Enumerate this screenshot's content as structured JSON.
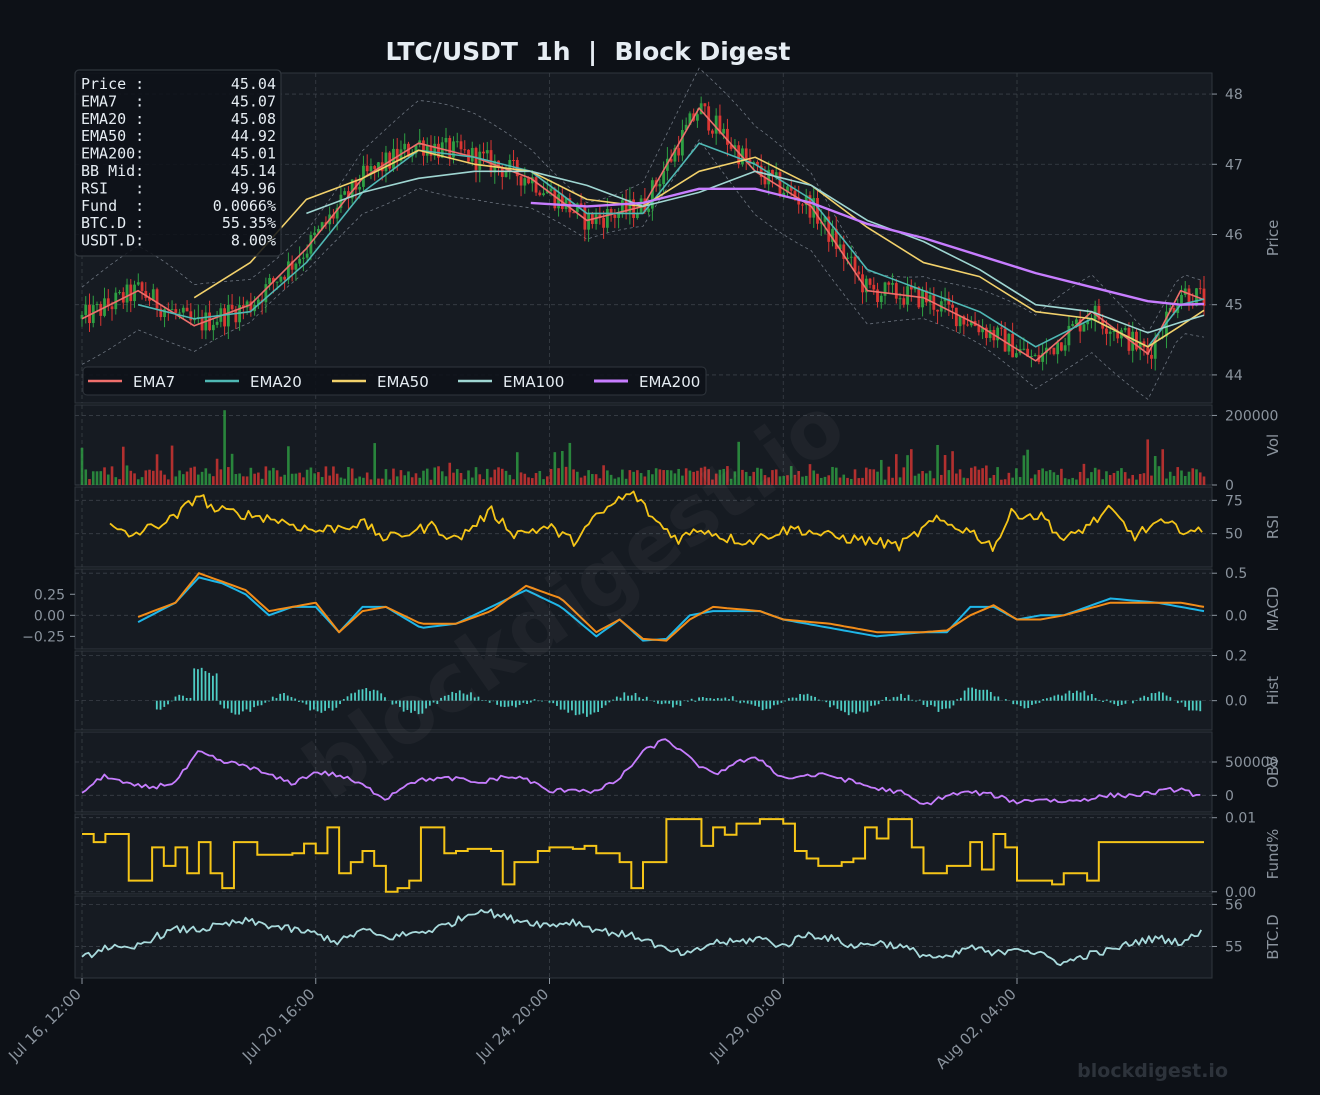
{
  "title": "LTC/USDT  1h  |  Block Digest",
  "watermark_big": "blockdigest.io",
  "watermark_small": "blockdigest.io",
  "colors": {
    "bg": "#0d1117",
    "panel": "#161b22",
    "grid": "#3a4048",
    "text": "#e6edf3",
    "muted": "#8b949e",
    "up": "#2ea043",
    "down": "#da3633",
    "ema7": "#ef6f6c",
    "ema20": "#4fb8b4",
    "ema50": "#f2d16b",
    "ema100": "#9fd6d2",
    "ema200": "#c77dff",
    "rsi": "#f5c518",
    "macd": "#1fb6e8",
    "signal": "#f28c18",
    "hist": "#4ecdc4",
    "obv": "#c77dff",
    "fund": "#f5c518",
    "btcd": "#a8dadc",
    "bb": "#6e7681"
  },
  "info_box": [
    {
      "label": "Price :",
      "value": "45.04"
    },
    {
      "label": "EMA7  :",
      "value": "45.07"
    },
    {
      "label": "EMA20 :",
      "value": "45.08"
    },
    {
      "label": "EMA50 :",
      "value": "44.92"
    },
    {
      "label": "EMA200:",
      "value": "45.01"
    },
    {
      "label": "BB Mid:",
      "value": "45.14"
    },
    {
      "label": "RSI   :",
      "value": "49.96"
    },
    {
      "label": "Fund  :",
      "value": "0.0066%"
    },
    {
      "label": "BTC.D :",
      "value": "55.35%"
    },
    {
      "label": "USDT.D:",
      "value": "8.00%"
    }
  ],
  "chart_data": [
    {
      "panel": "price",
      "type": "candlestick",
      "ylabel": "Price",
      "ylim": [
        43.6,
        48.3
      ],
      "yticks": [
        44,
        45,
        46,
        47,
        48
      ],
      "legend_position": "lower-left",
      "x_range_hours": [
        0,
        480
      ],
      "series": [
        {
          "name": "EMA7",
          "color_key": "ema7",
          "x": [
            0,
            24,
            48,
            72,
            96,
            120,
            144,
            168,
            192,
            216,
            240,
            264,
            288,
            312,
            336,
            360,
            384,
            408,
            432,
            456,
            470,
            480
          ],
          "values": [
            44.8,
            45.2,
            44.7,
            45.0,
            45.8,
            46.8,
            47.3,
            47.1,
            46.8,
            46.2,
            46.4,
            47.8,
            46.9,
            46.4,
            45.2,
            45.1,
            44.7,
            44.2,
            44.9,
            44.3,
            45.2,
            45.07
          ]
        },
        {
          "name": "EMA20",
          "color_key": "ema20",
          "x": [
            24,
            48,
            72,
            96,
            120,
            144,
            168,
            192,
            216,
            240,
            264,
            288,
            312,
            336,
            360,
            384,
            408,
            432,
            456,
            470,
            480
          ],
          "values": [
            45.0,
            44.8,
            44.9,
            45.6,
            46.6,
            47.2,
            47.1,
            46.9,
            46.3,
            46.3,
            47.3,
            47.0,
            46.5,
            45.5,
            45.2,
            44.9,
            44.4,
            44.8,
            44.4,
            45.0,
            45.08
          ]
        },
        {
          "name": "EMA50",
          "color_key": "ema50",
          "x": [
            48,
            72,
            96,
            120,
            144,
            168,
            192,
            216,
            240,
            264,
            288,
            312,
            336,
            360,
            384,
            408,
            432,
            456,
            470,
            480
          ],
          "values": [
            45.1,
            45.6,
            46.5,
            46.8,
            47.2,
            47.0,
            46.9,
            46.5,
            46.4,
            46.9,
            47.1,
            46.7,
            46.1,
            45.6,
            45.4,
            44.9,
            44.8,
            44.4,
            44.7,
            44.92
          ]
        },
        {
          "name": "EMA100",
          "color_key": "ema100",
          "x": [
            96,
            120,
            144,
            168,
            192,
            216,
            240,
            264,
            288,
            312,
            336,
            360,
            384,
            408,
            432,
            456,
            470,
            480
          ],
          "values": [
            46.3,
            46.6,
            46.8,
            46.9,
            46.9,
            46.7,
            46.4,
            46.6,
            46.9,
            46.7,
            46.2,
            45.9,
            45.5,
            45.0,
            44.9,
            44.6,
            44.75,
            44.85
          ]
        },
        {
          "name": "EMA200",
          "color_key": "ema200",
          "x": [
            192,
            216,
            240,
            264,
            288,
            312,
            336,
            360,
            384,
            408,
            432,
            456,
            470,
            480
          ],
          "values": [
            46.45,
            46.4,
            46.45,
            46.65,
            46.65,
            46.45,
            46.15,
            45.95,
            45.7,
            45.45,
            45.25,
            45.05,
            45.0,
            45.01
          ]
        }
      ]
    },
    {
      "panel": "volume",
      "type": "bar",
      "ylabel": "Vol",
      "ylim": [
        0,
        230000
      ],
      "yticks": [
        0,
        200000
      ]
    },
    {
      "panel": "rsi",
      "type": "line",
      "ylabel": "RSI",
      "ylim": [
        25,
        85
      ],
      "yticks": [
        50,
        75
      ],
      "x": [
        12,
        20,
        40,
        50,
        56,
        80,
        100,
        120,
        130,
        150,
        160,
        175,
        185,
        200,
        210,
        220,
        230,
        236,
        245,
        255,
        265,
        275,
        285,
        295,
        305,
        320,
        335,
        350,
        365,
        380,
        390,
        398,
        412,
        420,
        430,
        440,
        450,
        460,
        470,
        480
      ],
      "values": [
        55,
        48,
        62,
        80,
        68,
        62,
        52,
        58,
        46,
        56,
        45,
        67,
        50,
        55,
        44,
        62,
        76,
        80,
        60,
        46,
        54,
        47,
        44,
        50,
        54,
        48,
        45,
        41,
        60,
        52,
        40,
        66,
        62,
        44,
        56,
        68,
        48,
        58,
        54,
        50
      ]
    },
    {
      "panel": "macd",
      "type": "line",
      "ylabel": "MACD",
      "ylim": [
        -0.4,
        0.55
      ],
      "yticks_right": [
        0.0,
        0.5
      ],
      "yticks_left": [
        0.25,
        0.0,
        -0.25
      ],
      "x": [
        24,
        40,
        50,
        60,
        70,
        80,
        90,
        100,
        110,
        120,
        130,
        145,
        160,
        175,
        190,
        205,
        220,
        230,
        240,
        250,
        260,
        270,
        290,
        300,
        320,
        340,
        360,
        370,
        380,
        390,
        400,
        410,
        420,
        440,
        460,
        470,
        480
      ],
      "series": [
        {
          "name": "MACD",
          "color_key": "macd",
          "values": [
            -0.08,
            0.15,
            0.45,
            0.38,
            0.25,
            0.0,
            0.1,
            0.1,
            -0.2,
            0.1,
            0.1,
            -0.15,
            -0.1,
            0.1,
            0.3,
            0.1,
            -0.25,
            -0.05,
            -0.3,
            -0.28,
            0.0,
            0.05,
            0.05,
            -0.05,
            -0.15,
            -0.25,
            -0.2,
            -0.2,
            0.1,
            0.1,
            -0.05,
            0.0,
            0.0,
            0.2,
            0.15,
            0.1,
            0.05
          ]
        },
        {
          "name": "Signal",
          "color_key": "signal",
          "values": [
            -0.02,
            0.15,
            0.5,
            0.4,
            0.3,
            0.05,
            0.1,
            0.15,
            -0.2,
            0.05,
            0.1,
            -0.1,
            -0.1,
            0.05,
            0.35,
            0.2,
            -0.2,
            -0.05,
            -0.28,
            -0.3,
            -0.05,
            0.1,
            0.05,
            -0.05,
            -0.1,
            -0.2,
            -0.2,
            -0.18,
            0.0,
            0.12,
            -0.05,
            -0.05,
            0.0,
            0.15,
            0.15,
            0.15,
            0.1
          ]
        }
      ]
    },
    {
      "panel": "hist",
      "type": "bar",
      "ylabel": "Hist",
      "ylim": [
        -0.13,
        0.22
      ],
      "yticks": [
        0.0,
        0.2
      ]
    },
    {
      "panel": "obv",
      "type": "line",
      "ylabel": "OBV",
      "ylim": [
        -250000,
        950000
      ],
      "yticks": [
        0,
        500000
      ],
      "x": [
        0,
        10,
        20,
        30,
        40,
        50,
        60,
        70,
        80,
        90,
        100,
        110,
        120,
        130,
        140,
        150,
        160,
        170,
        180,
        190,
        200,
        210,
        220,
        230,
        240,
        250,
        260,
        270,
        280,
        290,
        300,
        310,
        320,
        330,
        340,
        350,
        360,
        370,
        380,
        390,
        400,
        410,
        420,
        430,
        440,
        450,
        460,
        470,
        480
      ],
      "values": [
        50000,
        300000,
        150000,
        120000,
        200000,
        650000,
        500000,
        450000,
        300000,
        180000,
        350000,
        300000,
        150000,
        -50000,
        200000,
        250000,
        250000,
        180000,
        280000,
        250000,
        50000,
        100000,
        50000,
        250000,
        650000,
        850000,
        550000,
        300000,
        500000,
        550000,
        250000,
        300000,
        300000,
        200000,
        100000,
        50000,
        -150000,
        0,
        50000,
        0,
        -100000,
        -50000,
        -100000,
        -50000,
        0,
        0,
        50000,
        100000,
        -50000
      ]
    },
    {
      "panel": "fund",
      "type": "step",
      "ylabel": "Fund%",
      "ylim": [
        -0.0003,
        0.0105
      ],
      "yticks": [
        0.0,
        0.01
      ],
      "x": [
        0,
        5,
        10,
        15,
        20,
        25,
        30,
        35,
        40,
        45,
        50,
        55,
        60,
        65,
        70,
        75,
        80,
        85,
        90,
        95,
        100,
        105,
        110,
        115,
        120,
        125,
        130,
        135,
        140,
        145,
        150,
        155,
        160,
        165,
        170,
        175,
        180,
        185,
        190,
        195,
        200,
        205,
        210,
        215,
        220,
        225,
        230,
        235,
        240,
        245,
        250,
        255,
        260,
        265,
        270,
        275,
        280,
        285,
        290,
        295,
        300,
        305,
        310,
        315,
        320,
        325,
        330,
        335,
        340,
        345,
        350,
        355,
        360,
        365,
        370,
        375,
        380,
        385,
        390,
        395,
        400,
        405,
        410,
        415,
        420,
        425,
        430,
        435,
        440,
        445,
        450,
        455,
        460,
        465,
        470,
        475,
        480
      ],
      "values": [
        0.0078,
        0.0067,
        0.0078,
        0.0078,
        0.0015,
        0.0015,
        0.006,
        0.0035,
        0.006,
        0.0025,
        0.0067,
        0.0025,
        0.0005,
        0.0067,
        0.0067,
        0.005,
        0.005,
        0.005,
        0.0052,
        0.0065,
        0.0052,
        0.0087,
        0.0025,
        0.004,
        0.0055,
        0.0035,
        0.0,
        0.0005,
        0.0015,
        0.0087,
        0.0087,
        0.0052,
        0.0055,
        0.0058,
        0.0058,
        0.0055,
        0.001,
        0.004,
        0.004,
        0.0055,
        0.006,
        0.006,
        0.0058,
        0.0062,
        0.0052,
        0.0052,
        0.004,
        0.0005,
        0.004,
        0.004,
        0.0098,
        0.0098,
        0.0098,
        0.0062,
        0.0087,
        0.0077,
        0.0092,
        0.0092,
        0.0098,
        0.0098,
        0.0092,
        0.0055,
        0.0045,
        0.0035,
        0.0035,
        0.004,
        0.0045,
        0.0087,
        0.0072,
        0.0098,
        0.0098,
        0.006,
        0.0025,
        0.0025,
        0.0035,
        0.0035,
        0.0067,
        0.003,
        0.0078,
        0.006,
        0.0015,
        0.0015,
        0.0015,
        0.001,
        0.0025,
        0.0025,
        0.0015,
        0.0067,
        0.0067,
        0.0067,
        0.0067,
        0.0067,
        0.0067,
        0.0067,
        0.0067,
        0.0067,
        0.0066
      ]
    },
    {
      "panel": "btcd",
      "type": "line",
      "ylabel": "BTC.D",
      "ylim": [
        54.25,
        56.2
      ],
      "yticks": [
        55,
        56
      ],
      "x": [
        0,
        10,
        20,
        30,
        40,
        50,
        60,
        70,
        80,
        90,
        100,
        110,
        120,
        130,
        140,
        150,
        160,
        170,
        180,
        190,
        200,
        210,
        220,
        230,
        240,
        250,
        260,
        270,
        280,
        290,
        300,
        310,
        320,
        330,
        340,
        350,
        360,
        370,
        380,
        390,
        400,
        410,
        420,
        430,
        440,
        450,
        460,
        470,
        480
      ],
      "values": [
        54.7,
        55.0,
        54.9,
        55.2,
        55.4,
        55.4,
        55.5,
        55.6,
        55.5,
        55.4,
        55.3,
        55.1,
        55.4,
        55.2,
        55.3,
        55.4,
        55.6,
        55.9,
        55.7,
        55.6,
        55.5,
        55.6,
        55.4,
        55.3,
        55.2,
        54.9,
        54.8,
        55.1,
        55.1,
        55.2,
        55.0,
        55.3,
        55.2,
        55.0,
        55.1,
        55.0,
        54.8,
        54.7,
        55.0,
        54.8,
        55.0,
        54.8,
        54.6,
        54.8,
        54.9,
        55.1,
        55.2,
        55.1,
        55.35
      ]
    }
  ],
  "x_axis": {
    "tick_labels": [
      "Jul 16, 12:00",
      "Jul 20, 16:00",
      "Jul 24, 20:00",
      "Jul 29, 00:00",
      "Aug 02, 04:00"
    ],
    "tick_hours": [
      0,
      100,
      200,
      300,
      400
    ]
  }
}
